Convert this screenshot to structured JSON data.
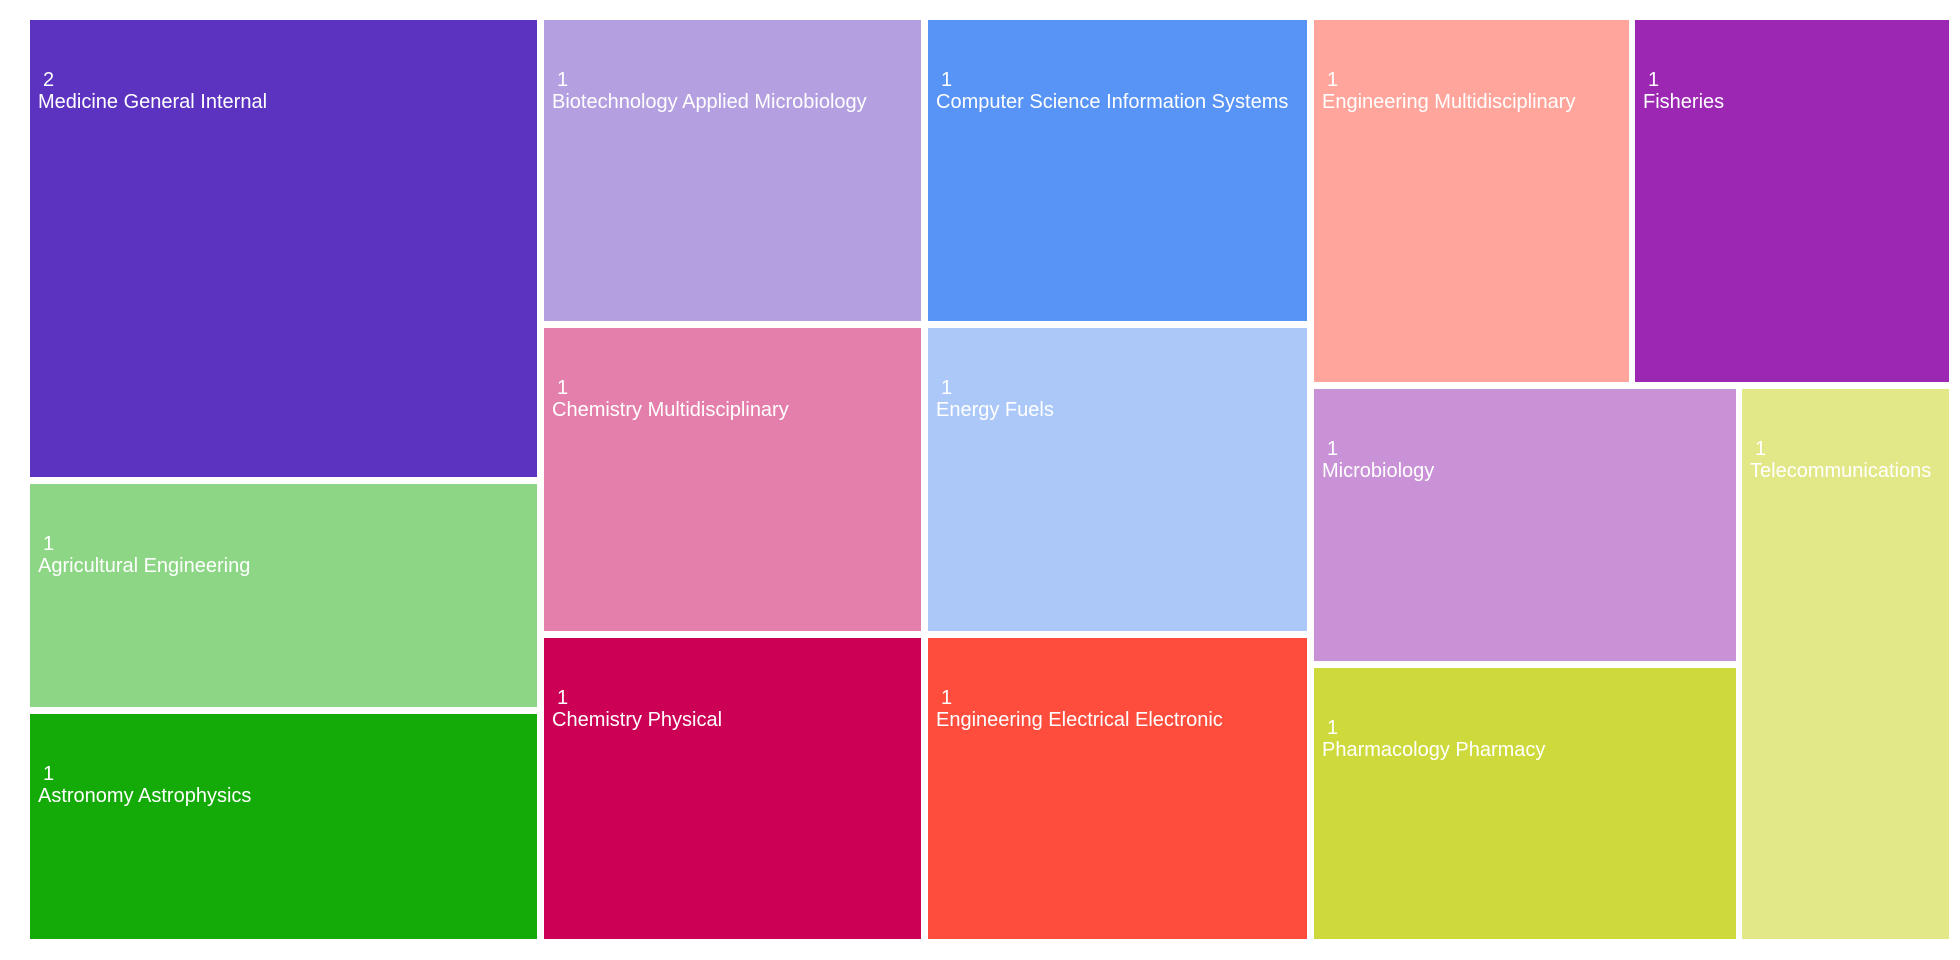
{
  "chart_data": {
    "type": "treemap",
    "categories": [
      "Medicine General Internal",
      "Agricultural Engineering",
      "Astronomy Astrophysics",
      "Biotechnology Applied Microbiology",
      "Chemistry Multidisciplinary",
      "Chemistry Physical",
      "Computer Science Information Systems",
      "Energy Fuels",
      "Engineering Electrical Electronic",
      "Engineering Multidisciplinary",
      "Fisheries",
      "Microbiology",
      "Pharmacology Pharmacy",
      "Telecommunications"
    ],
    "values": [
      2,
      1,
      1,
      1,
      1,
      1,
      1,
      1,
      1,
      1,
      1,
      1,
      1,
      1
    ],
    "colors": [
      "#5c33c0",
      "#8dd685",
      "#14aa07",
      "#b49fe0",
      "#e47fab",
      "#cc0055",
      "#5794f5",
      "#abc8f8",
      "#ff4d3d",
      "#ffa59b",
      "#9b27b3",
      "#c991d6",
      "#ceda3b",
      "#e2e887"
    ]
  }
}
